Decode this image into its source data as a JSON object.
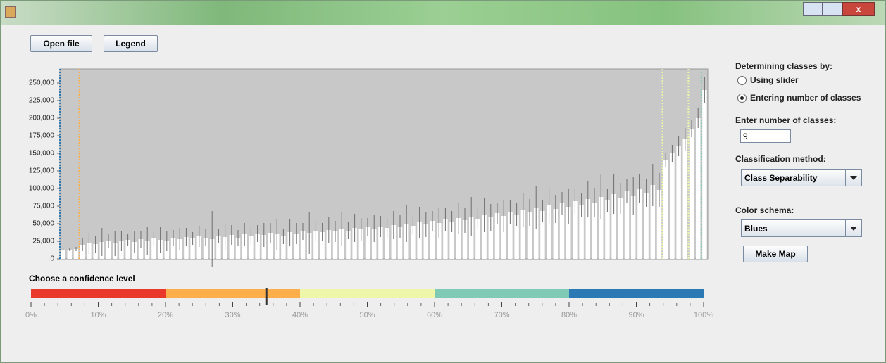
{
  "chart_data": {
    "type": "bar",
    "yticks": [
      {
        "value": 0,
        "label": "0"
      },
      {
        "value": 25000,
        "label": "25,000"
      },
      {
        "value": 50000,
        "label": "50,000"
      },
      {
        "value": 75000,
        "label": "75,000"
      },
      {
        "value": 100000,
        "label": "100,000"
      },
      {
        "value": 125000,
        "label": "125,000"
      },
      {
        "value": 150000,
        "label": "150,000"
      },
      {
        "value": 175000,
        "label": "175,000"
      },
      {
        "value": 200000,
        "label": "200,000"
      },
      {
        "value": 225000,
        "label": "225,000"
      },
      {
        "value": 250000,
        "label": "250,000"
      }
    ],
    "ylim": [
      0,
      270000
    ],
    "color": "#ffffff",
    "error_color": "#6e6e6e",
    "background": "#c8c8c8",
    "values": [
      13000,
      13000,
      14000,
      20000,
      22000,
      21000,
      24000,
      26000,
      22000,
      25000,
      27000,
      24000,
      28000,
      26000,
      29000,
      27000,
      25000,
      30000,
      28000,
      31000,
      29000,
      32000,
      30000,
      28000,
      33000,
      31000,
      34000,
      30000,
      35000,
      33000,
      36000,
      34000,
      37000,
      35000,
      32000,
      38000,
      36000,
      39000,
      37000,
      40000,
      38000,
      41000,
      39000,
      43000,
      40000,
      44000,
      42000,
      45000,
      43000,
      46000,
      44000,
      48000,
      46000,
      50000,
      47000,
      52000,
      49000,
      54000,
      51000,
      56000,
      53000,
      58000,
      55000,
      60000,
      57000,
      62000,
      59000,
      65000,
      61000,
      67000,
      63000,
      70000,
      66000,
      73000,
      68000,
      76000,
      71000,
      79000,
      74000,
      82000,
      77000,
      85000,
      80000,
      88000,
      83000,
      92000,
      86000,
      96000,
      90000,
      100000,
      94000,
      105000,
      98000,
      140000,
      150000,
      160000,
      170000,
      185000,
      200000,
      240000
    ],
    "errors": [
      2000,
      2000,
      3000,
      9000,
      15000,
      12000,
      20000,
      10000,
      18000,
      14000,
      9000,
      15000,
      12000,
      20000,
      10000,
      18000,
      14000,
      11000,
      16000,
      13000,
      9000,
      15000,
      12000,
      40000,
      10000,
      18000,
      14000,
      11000,
      16000,
      13000,
      12000,
      17000,
      14000,
      22000,
      11000,
      19000,
      15000,
      12000,
      30000,
      14000,
      13000,
      18000,
      15000,
      24000,
      12000,
      20000,
      16000,
      13000,
      19000,
      15000,
      14000,
      20000,
      16000,
      26000,
      13000,
      22000,
      18000,
      14000,
      21000,
      16000,
      15000,
      22000,
      18000,
      28000,
      14000,
      24000,
      19000,
      15000,
      23000,
      17000,
      16000,
      24000,
      19000,
      30000,
      15000,
      26000,
      20000,
      16000,
      25000,
      18000,
      17000,
      26000,
      21000,
      32000,
      16000,
      28000,
      22000,
      17000,
      27000,
      20000,
      20000,
      30000,
      24000,
      10000,
      12000,
      14000,
      16000,
      12000,
      14000,
      18000
    ],
    "class_breaks": [
      {
        "index": 0,
        "color": "#2b79b5"
      },
      {
        "index": 3,
        "color": "#fbae4a"
      },
      {
        "index": 93,
        "color": "#eef6a9"
      },
      {
        "index": 97,
        "color": "#eef6a9"
      },
      {
        "index": 99,
        "color": "#7fcab4"
      }
    ]
  },
  "controls": {
    "open_file": "Open file",
    "legend": "Legend",
    "slider_title": "Choose a confidence level",
    "slider": {
      "xlim": [
        0,
        100
      ],
      "value": 35,
      "segments": [
        {
          "from": 0,
          "to": 20,
          "color": "#e8392a"
        },
        {
          "from": 20,
          "to": 40,
          "color": "#fbae4a"
        },
        {
          "from": 40,
          "to": 60,
          "color": "#eef6a9"
        },
        {
          "from": 60,
          "to": 80,
          "color": "#7fcab4"
        },
        {
          "from": 80,
          "to": 100,
          "color": "#2b79b5"
        }
      ],
      "xticks": [
        {
          "value": 0,
          "label": "0%"
        },
        {
          "value": 10,
          "label": "10%"
        },
        {
          "value": 20,
          "label": "20%"
        },
        {
          "value": 30,
          "label": "30%"
        },
        {
          "value": 40,
          "label": "40%"
        },
        {
          "value": 50,
          "label": "50%"
        },
        {
          "value": 60,
          "label": "60%"
        },
        {
          "value": 70,
          "label": "70%"
        },
        {
          "value": 80,
          "label": "80%"
        },
        {
          "value": 90,
          "label": "90%"
        },
        {
          "value": 100,
          "label": "100%"
        }
      ],
      "minor_step": 2
    },
    "determining": "Determining classes by:",
    "using_slider": "Using slider",
    "entering": "Entering number of classes",
    "enter_number": "Enter number of classes:",
    "number": "9",
    "classification": "Classification method:",
    "method": "Class Separability",
    "color_schema": "Color schema:",
    "schema": "Blues",
    "make_map": "Make Map"
  }
}
